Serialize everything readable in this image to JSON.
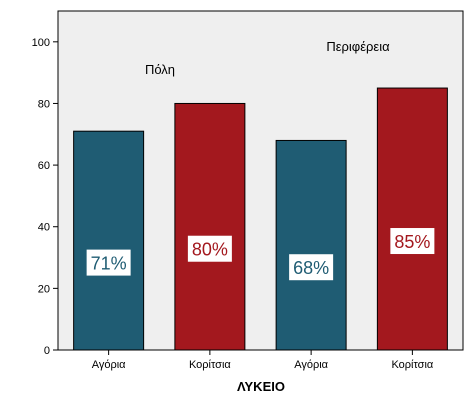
{
  "chart_data": {
    "type": "bar",
    "title": "",
    "xlabel": "ΛΥΚΕΙΟ",
    "ylabel": "",
    "ylim": [
      0,
      110
    ],
    "yticks": [
      0,
      20,
      40,
      60,
      80,
      100
    ],
    "grid": false,
    "groups": [
      {
        "label": "Πόλη",
        "categories": [
          "Αγόρια",
          "Κορίτσια"
        ]
      },
      {
        "label": "Περιφέρεια",
        "categories": [
          "Αγόρια",
          "Κορίτσια"
        ]
      }
    ],
    "categories": [
      "Αγόρια",
      "Κορίτσια",
      "Αγόρια",
      "Κορίτσια"
    ],
    "values": [
      71,
      80,
      68,
      85
    ],
    "data_labels": [
      "71%",
      "80%",
      "68%",
      "85%"
    ],
    "bar_colors": [
      "#1f5c73",
      "#a3181e",
      "#1f5c73",
      "#a3181e"
    ],
    "plot_background": "#efefef"
  }
}
